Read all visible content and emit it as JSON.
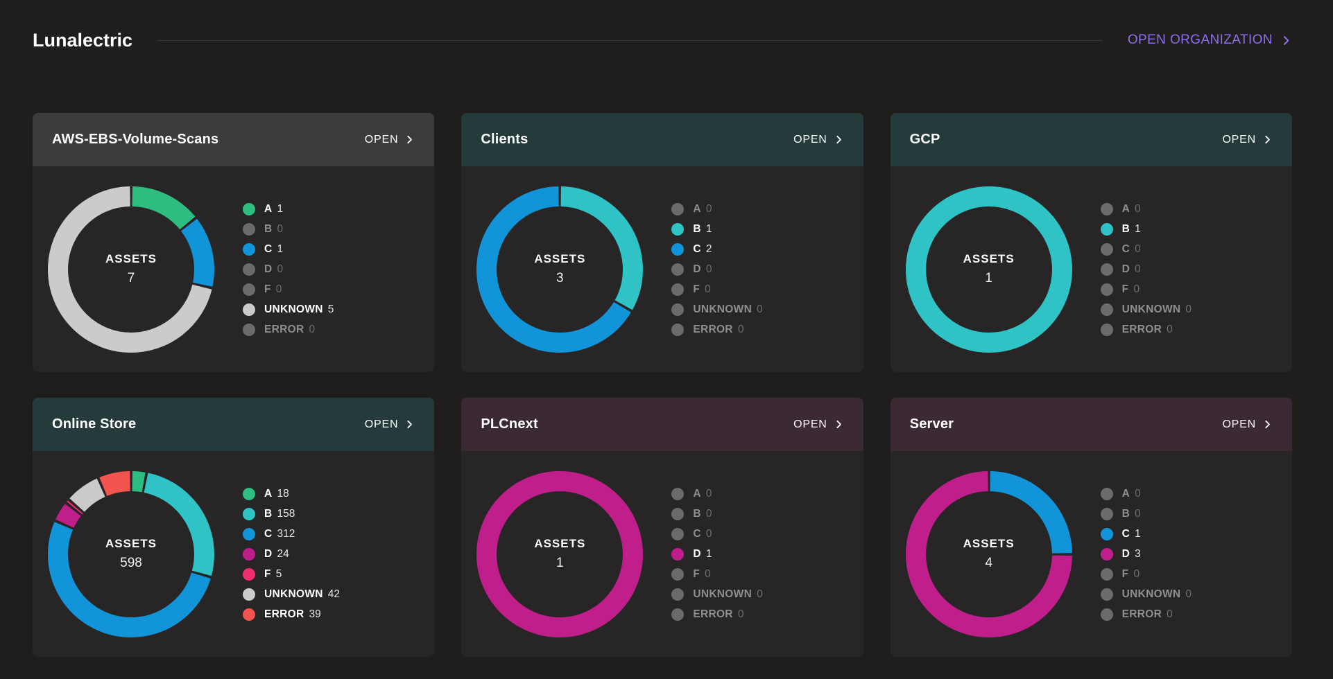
{
  "page": {
    "title": "Lunalectric",
    "open_organization_label": "OPEN ORGANIZATION"
  },
  "grade_order": [
    "A",
    "B",
    "C",
    "D",
    "F",
    "UNKNOWN",
    "ERROR"
  ],
  "grade_colors": {
    "A": "#2ebd80",
    "B": "#30c3c6",
    "C": "#1195d8",
    "D": "#c01f8b",
    "F": "#f12d6d",
    "UNKNOWN": "#cbcbcb",
    "ERROR": "#f25450"
  },
  "zero_dot_color": "#6b6b6b",
  "header_tints": {
    "neutral": "#3d3c3c",
    "teal": "#253b3b",
    "plum": "#3b2a33"
  },
  "accent_color": "#8b6ff0",
  "cards": [
    {
      "title": "AWS-EBS-Volume-Scans",
      "open_label": "OPEN",
      "tint": "neutral",
      "assets_label": "ASSETS",
      "assets_total": "7",
      "grades": {
        "A": 1,
        "B": 0,
        "C": 1,
        "D": 0,
        "F": 0,
        "UNKNOWN": 5,
        "ERROR": 0
      }
    },
    {
      "title": "Clients",
      "open_label": "OPEN",
      "tint": "teal",
      "assets_label": "ASSETS",
      "assets_total": "3",
      "grades": {
        "A": 0,
        "B": 1,
        "C": 2,
        "D": 0,
        "F": 0,
        "UNKNOWN": 0,
        "ERROR": 0
      }
    },
    {
      "title": "GCP",
      "open_label": "OPEN",
      "tint": "teal",
      "assets_label": "ASSETS",
      "assets_total": "1",
      "grades": {
        "A": 0,
        "B": 1,
        "C": 0,
        "D": 0,
        "F": 0,
        "UNKNOWN": 0,
        "ERROR": 0
      }
    },
    {
      "title": "Online Store",
      "open_label": "OPEN",
      "tint": "teal",
      "assets_label": "ASSETS",
      "assets_total": "598",
      "grades": {
        "A": 18,
        "B": 158,
        "C": 312,
        "D": 24,
        "F": 5,
        "UNKNOWN": 42,
        "ERROR": 39
      }
    },
    {
      "title": "PLCnext",
      "open_label": "OPEN",
      "tint": "plum",
      "assets_label": "ASSETS",
      "assets_total": "1",
      "grades": {
        "A": 0,
        "B": 0,
        "C": 0,
        "D": 1,
        "F": 0,
        "UNKNOWN": 0,
        "ERROR": 0
      }
    },
    {
      "title": "Server",
      "open_label": "OPEN",
      "tint": "plum",
      "assets_label": "ASSETS",
      "assets_total": "4",
      "grades": {
        "A": 0,
        "B": 0,
        "C": 1,
        "D": 3,
        "F": 0,
        "UNKNOWN": 0,
        "ERROR": 0
      }
    }
  ],
  "chart_data": [
    {
      "type": "pie",
      "title": "AWS-EBS-Volume-Scans",
      "center_label": "ASSETS",
      "total": 7,
      "categories": [
        "A",
        "B",
        "C",
        "D",
        "F",
        "UNKNOWN",
        "ERROR"
      ],
      "values": [
        1,
        0,
        1,
        0,
        0,
        5,
        0
      ]
    },
    {
      "type": "pie",
      "title": "Clients",
      "center_label": "ASSETS",
      "total": 3,
      "categories": [
        "A",
        "B",
        "C",
        "D",
        "F",
        "UNKNOWN",
        "ERROR"
      ],
      "values": [
        0,
        1,
        2,
        0,
        0,
        0,
        0
      ]
    },
    {
      "type": "pie",
      "title": "GCP",
      "center_label": "ASSETS",
      "total": 1,
      "categories": [
        "A",
        "B",
        "C",
        "D",
        "F",
        "UNKNOWN",
        "ERROR"
      ],
      "values": [
        0,
        1,
        0,
        0,
        0,
        0,
        0
      ]
    },
    {
      "type": "pie",
      "title": "Online Store",
      "center_label": "ASSETS",
      "total": 598,
      "categories": [
        "A",
        "B",
        "C",
        "D",
        "F",
        "UNKNOWN",
        "ERROR"
      ],
      "values": [
        18,
        158,
        312,
        24,
        5,
        42,
        39
      ]
    },
    {
      "type": "pie",
      "title": "PLCnext",
      "center_label": "ASSETS",
      "total": 1,
      "categories": [
        "A",
        "B",
        "C",
        "D",
        "F",
        "UNKNOWN",
        "ERROR"
      ],
      "values": [
        0,
        0,
        0,
        1,
        0,
        0,
        0
      ]
    },
    {
      "type": "pie",
      "title": "Server",
      "center_label": "ASSETS",
      "total": 4,
      "categories": [
        "A",
        "B",
        "C",
        "D",
        "F",
        "UNKNOWN",
        "ERROR"
      ],
      "values": [
        0,
        0,
        1,
        3,
        0,
        0,
        0
      ]
    }
  ]
}
